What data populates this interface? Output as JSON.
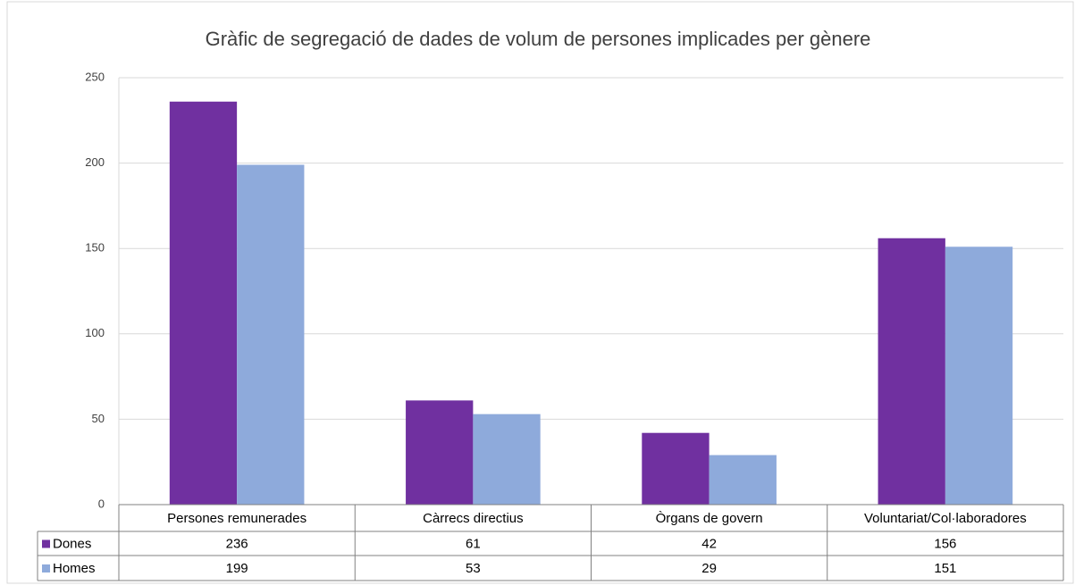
{
  "chart_data": {
    "type": "bar",
    "title": "Gràfic de segregació de dades de volum de persones implicades per gènere",
    "categories": [
      "Persones remunerades",
      "Càrrecs directius",
      "Òrgans de govern",
      "Voluntariat/Col·laboradores"
    ],
    "series": [
      {
        "name": "Dones",
        "color": "#7030a0",
        "values": [
          236,
          61,
          42,
          156
        ]
      },
      {
        "name": "Homes",
        "color": "#8eaadb",
        "values": [
          199,
          53,
          29,
          151
        ]
      }
    ],
    "ylim": [
      0,
      250
    ],
    "yticks": [
      0,
      50,
      100,
      150,
      200,
      250
    ],
    "grid": true,
    "data_table": true
  }
}
